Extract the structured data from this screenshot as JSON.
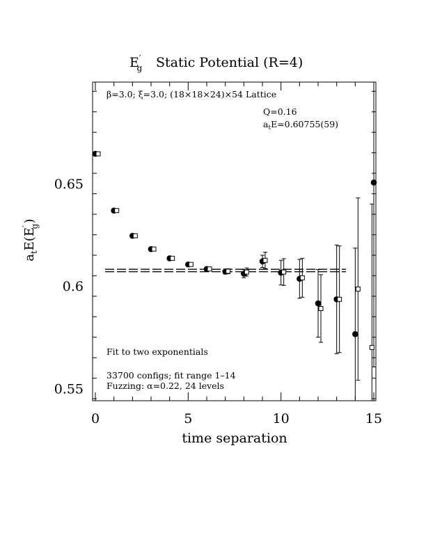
{
  "chart_data": {
    "type": "scatter",
    "title_main": "E",
    "title_prime": "′",
    "title_sub": "g",
    "title_rest": "Static Potential (R=4)",
    "xlabel": "time separation",
    "ylabel_a": "a",
    "ylabel_t": "t",
    "ylabel_e": "E(E",
    "ylabel_prime": "′",
    "ylabel_g": "g",
    "ylabel_close": ")",
    "xlim": [
      0,
      15
    ],
    "ylim": [
      0.544,
      0.6995
    ],
    "xticks_major": [
      0,
      5,
      10,
      15
    ],
    "xticklabels": [
      "0",
      "5",
      "10",
      "15"
    ],
    "yticks_major": [
      0.55,
      0.6,
      0.65
    ],
    "yticklabels": [
      "0.55",
      "0.6",
      "0.65"
    ],
    "grid": false,
    "annotations": {
      "lattice": "β=3.0; ξ=3.0; (18×18×24)×54 Lattice",
      "q": "Q=0.16",
      "fit_a": "a",
      "fit_t": "t",
      "fit_rest": "E=0.60755(59)",
      "fit_method": "Fit to two exponentials",
      "configs": "33700 configs; fit range 1–14",
      "fuzzing": "Fuzzing: α=0.22, 24 levels"
    },
    "fit": {
      "value": 0.60755,
      "error": 0.00059,
      "x_range": [
        0,
        13.5
      ]
    },
    "series": [
      {
        "marker": "filled-circle",
        "points": [
          {
            "x": 0,
            "y": 0.6645,
            "err": 0.0008
          },
          {
            "x": 1,
            "y": 0.6368,
            "err": 0.0008
          },
          {
            "x": 2,
            "y": 0.6245,
            "err": 0.0008
          },
          {
            "x": 3,
            "y": 0.618,
            "err": 0.0008
          },
          {
            "x": 4,
            "y": 0.6135,
            "err": 0.0008
          },
          {
            "x": 5,
            "y": 0.6105,
            "err": 0.0008
          },
          {
            "x": 6,
            "y": 0.6083,
            "err": 0.0009
          },
          {
            "x": 7,
            "y": 0.607,
            "err": 0.0012
          },
          {
            "x": 8,
            "y": 0.606,
            "err": 0.002
          },
          {
            "x": 9,
            "y": 0.612,
            "err": 0.003
          },
          {
            "x": 10,
            "y": 0.6065,
            "err": 0.006
          },
          {
            "x": 11,
            "y": 0.6035,
            "err": 0.0095
          },
          {
            "x": 12,
            "y": 0.5915,
            "err": 0.0165
          },
          {
            "x": 13,
            "y": 0.5935,
            "err": 0.0265
          },
          {
            "x": 14,
            "y": 0.5765,
            "err": 0.042
          },
          {
            "x": 15,
            "y": 0.6505,
            "err": 0.09
          }
        ]
      },
      {
        "marker": "open-square",
        "points": [
          {
            "x": 0.15,
            "y": 0.6645,
            "err": 0.0008
          },
          {
            "x": 1.15,
            "y": 0.6368,
            "err": 0.0008
          },
          {
            "x": 2.15,
            "y": 0.6245,
            "err": 0.0008
          },
          {
            "x": 3.15,
            "y": 0.618,
            "err": 0.0008
          },
          {
            "x": 4.15,
            "y": 0.6135,
            "err": 0.0008
          },
          {
            "x": 5.15,
            "y": 0.6105,
            "err": 0.0008
          },
          {
            "x": 6.15,
            "y": 0.6083,
            "err": 0.0009
          },
          {
            "x": 7.15,
            "y": 0.6072,
            "err": 0.0012
          },
          {
            "x": 8.15,
            "y": 0.6068,
            "err": 0.002
          },
          {
            "x": 9.15,
            "y": 0.6125,
            "err": 0.004
          },
          {
            "x": 10.15,
            "y": 0.6068,
            "err": 0.0065
          },
          {
            "x": 11.15,
            "y": 0.604,
            "err": 0.0095
          },
          {
            "x": 12.15,
            "y": 0.589,
            "err": 0.0165
          },
          {
            "x": 13.15,
            "y": 0.5935,
            "err": 0.026
          },
          {
            "x": 14.15,
            "y": 0.5985,
            "err": 0.0445
          },
          {
            "x": 14.9,
            "y": 0.57,
            "err": 0.07
          }
        ]
      }
    ]
  }
}
